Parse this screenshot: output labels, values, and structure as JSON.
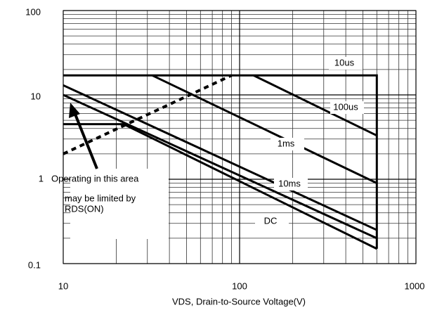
{
  "chart_data": {
    "type": "line",
    "x_label": "VDS, Drain-to-Source Voltage(V)",
    "xscale": "log",
    "yscale": "log",
    "grid": true,
    "xlim": [
      10,
      1000
    ],
    "ylim": [
      0.1,
      100
    ],
    "xticks": [
      10,
      100,
      1000
    ],
    "yticks": [
      0.1,
      1,
      10,
      100
    ],
    "series": [
      {
        "name": "10us",
        "color": "#000000",
        "x": [
          10,
          600,
          600
        ],
        "values": [
          17,
          17,
          0.15
        ]
      },
      {
        "name": "100us",
        "color": "#000000",
        "x": [
          120,
          600
        ],
        "values": [
          17,
          3.3
        ]
      },
      {
        "name": "1ms",
        "color": "#000000",
        "x": [
          32,
          600
        ],
        "values": [
          17,
          0.9
        ]
      },
      {
        "name": "10ms",
        "color": "#000000",
        "x": [
          10,
          600
        ],
        "values": [
          13,
          0.25
        ]
      },
      {
        "name": "DC",
        "color": "#000000",
        "x": [
          10,
          600
        ],
        "values": [
          10,
          0.2
        ]
      },
      {
        "color": "#000000",
        "x": [
          10,
          22,
          600
        ],
        "values": [
          4.5,
          4.5,
          0.15
        ]
      },
      {
        "color": "#000000",
        "dashed": true,
        "x": [
          10,
          90
        ],
        "values": [
          2,
          17
        ]
      }
    ],
    "annotations": [
      "Operating in this area",
      "may be limited by",
      "RDS(ON)"
    ]
  }
}
